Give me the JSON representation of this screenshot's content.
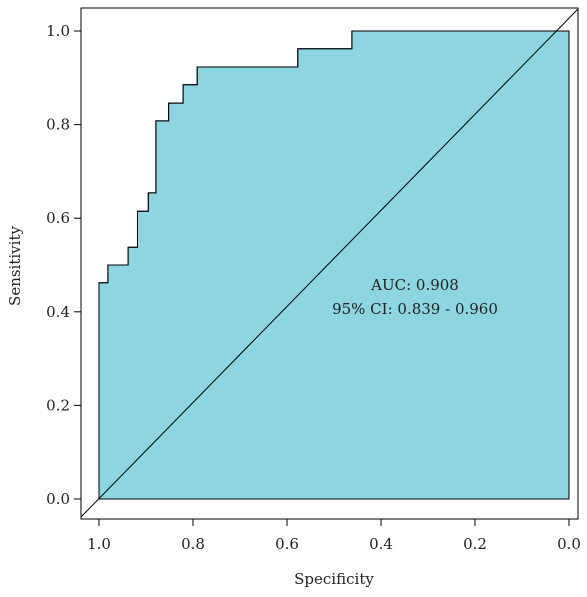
{
  "chart_data": {
    "type": "area",
    "title": "",
    "xlabel": "Specificity",
    "ylabel": "Sensitivity",
    "xlim": [
      1.0,
      0.0
    ],
    "ylim": [
      0.0,
      1.0
    ],
    "x_reversed": true,
    "grid": false,
    "legend": "none",
    "fill_color": "#8DD5E0",
    "line_color": "#000000",
    "x_ticks": [
      {
        "value": 1.0,
        "label": "1.0"
      },
      {
        "value": 0.8,
        "label": "0.8"
      },
      {
        "value": 0.6,
        "label": "0.6"
      },
      {
        "value": 0.4,
        "label": "0.4"
      },
      {
        "value": 0.2,
        "label": "0.2"
      },
      {
        "value": 0.0,
        "label": "0.0"
      }
    ],
    "y_ticks": [
      {
        "value": 0.0,
        "label": "0.0"
      },
      {
        "value": 0.2,
        "label": "0.2"
      },
      {
        "value": 0.4,
        "label": "0.4"
      },
      {
        "value": 0.6,
        "label": "0.6"
      },
      {
        "value": 0.8,
        "label": "0.8"
      },
      {
        "value": 1.0,
        "label": "1.0"
      }
    ],
    "series": [
      {
        "specificity": [
          1.0,
          1.0,
          0.981,
          0.981,
          0.938,
          0.938,
          0.918,
          0.918,
          0.895,
          0.895,
          0.879,
          0.879,
          0.852,
          0.852,
          0.821,
          0.821,
          0.791,
          0.791,
          0.577,
          0.577,
          0.462,
          0.462,
          0.0
        ],
        "sensitivity": [
          0.0,
          0.462,
          0.462,
          0.5,
          0.5,
          0.538,
          0.538,
          0.615,
          0.615,
          0.654,
          0.654,
          0.808,
          0.808,
          0.846,
          0.846,
          0.885,
          0.885,
          0.923,
          0.923,
          0.962,
          0.962,
          1.0,
          1.0
        ]
      }
    ],
    "reference_line": {
      "from": [
        1.0,
        0.0
      ],
      "to": [
        0.0,
        1.0
      ]
    },
    "annotations": [
      "AUC: 0.908",
      "95% CI: 0.839 - 0.960"
    ]
  }
}
